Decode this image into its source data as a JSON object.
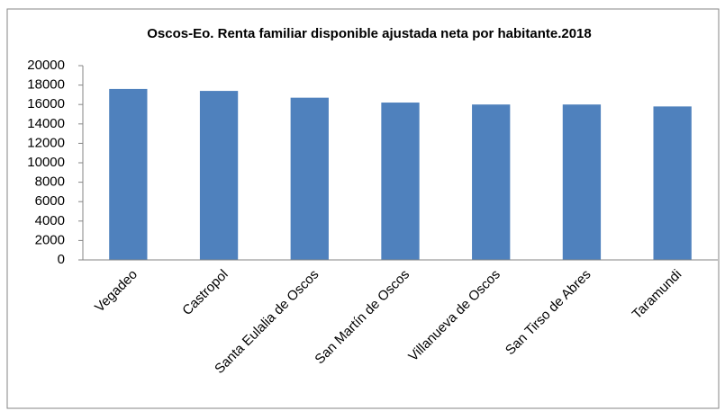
{
  "chart_data": {
    "type": "bar",
    "title": "Oscos-Eo. Renta familiar disponible ajustada neta por habitante.2018",
    "categories": [
      "Vegadeo",
      "Castropol",
      "Santa Eulalia de Oscos",
      "San Martín de Oscos",
      "Villanueva de Oscos",
      "San Tirso de Abres",
      "Taramundi"
    ],
    "values": [
      17600,
      17400,
      16700,
      16200,
      16000,
      16000,
      15800
    ],
    "color": "#4f81bd",
    "ylim": [
      0,
      20000
    ],
    "yticks": [
      0,
      2000,
      4000,
      6000,
      8000,
      10000,
      12000,
      14000,
      16000,
      18000,
      20000
    ],
    "grid": false
  }
}
